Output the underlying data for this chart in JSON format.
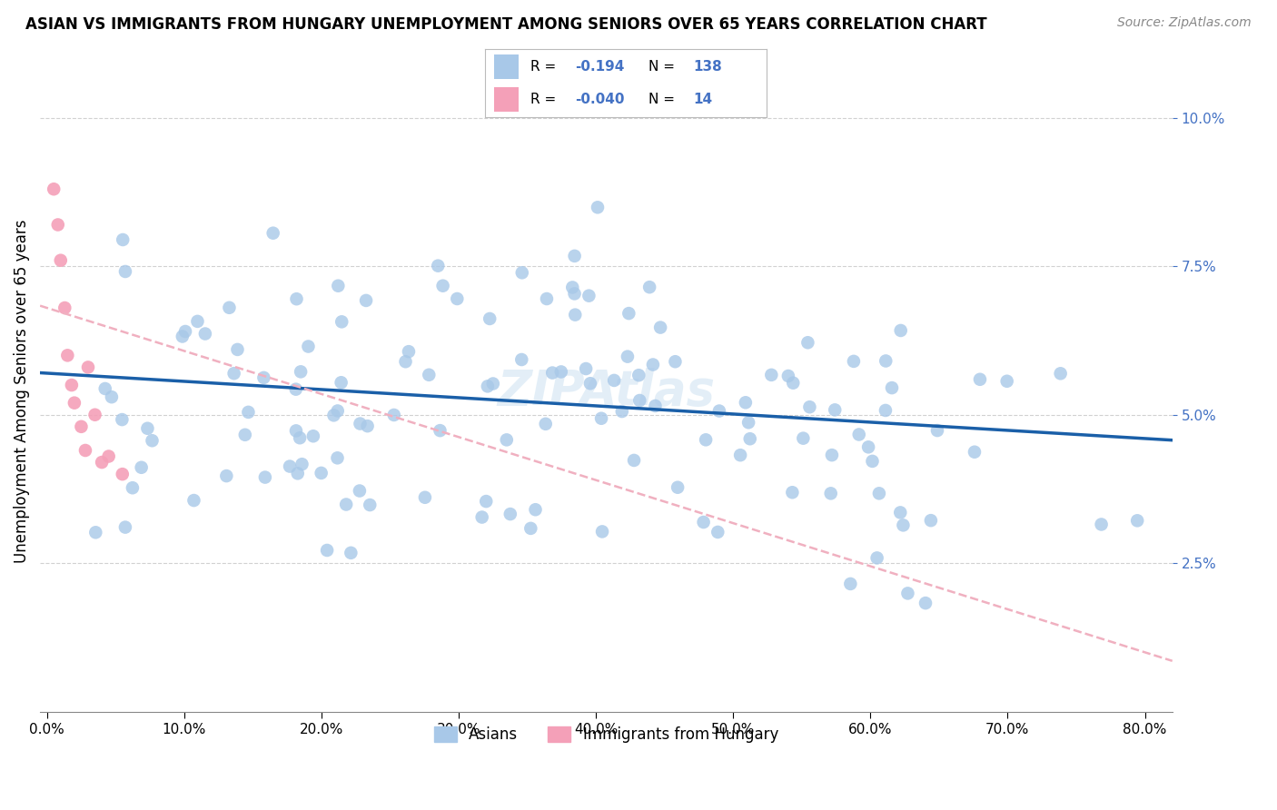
{
  "title": "ASIAN VS IMMIGRANTS FROM HUNGARY UNEMPLOYMENT AMONG SENIORS OVER 65 YEARS CORRELATION CHART",
  "source": "Source: ZipAtlas.com",
  "ylabel": "Unemployment Among Seniors over 65 years",
  "asian_R": -0.194,
  "asian_N": 138,
  "hungary_R": -0.04,
  "hungary_N": 14,
  "asian_color": "#a8c8e8",
  "hungary_color": "#f4a0b8",
  "asian_line_color": "#1a5fa8",
  "hungary_line_color": "#f0b0c0",
  "background_color": "#ffffff",
  "grid_color": "#cccccc",
  "ytick_color": "#4472c4",
  "xtick_labels": [
    "0.0%",
    "10.0%",
    "20.0%",
    "30.0%",
    "40.0%",
    "50.0%",
    "60.0%",
    "70.0%",
    "80.0%"
  ],
  "xtick_vals": [
    0.0,
    0.1,
    0.2,
    0.3,
    0.4,
    0.5,
    0.6,
    0.7,
    0.8
  ],
  "ytick_labels": [
    "2.5%",
    "5.0%",
    "7.5%",
    "10.0%"
  ],
  "ytick_vals": [
    0.025,
    0.05,
    0.075,
    0.1
  ],
  "ylim": [
    0.0,
    0.108
  ],
  "xlim": [
    -0.005,
    0.82
  ]
}
